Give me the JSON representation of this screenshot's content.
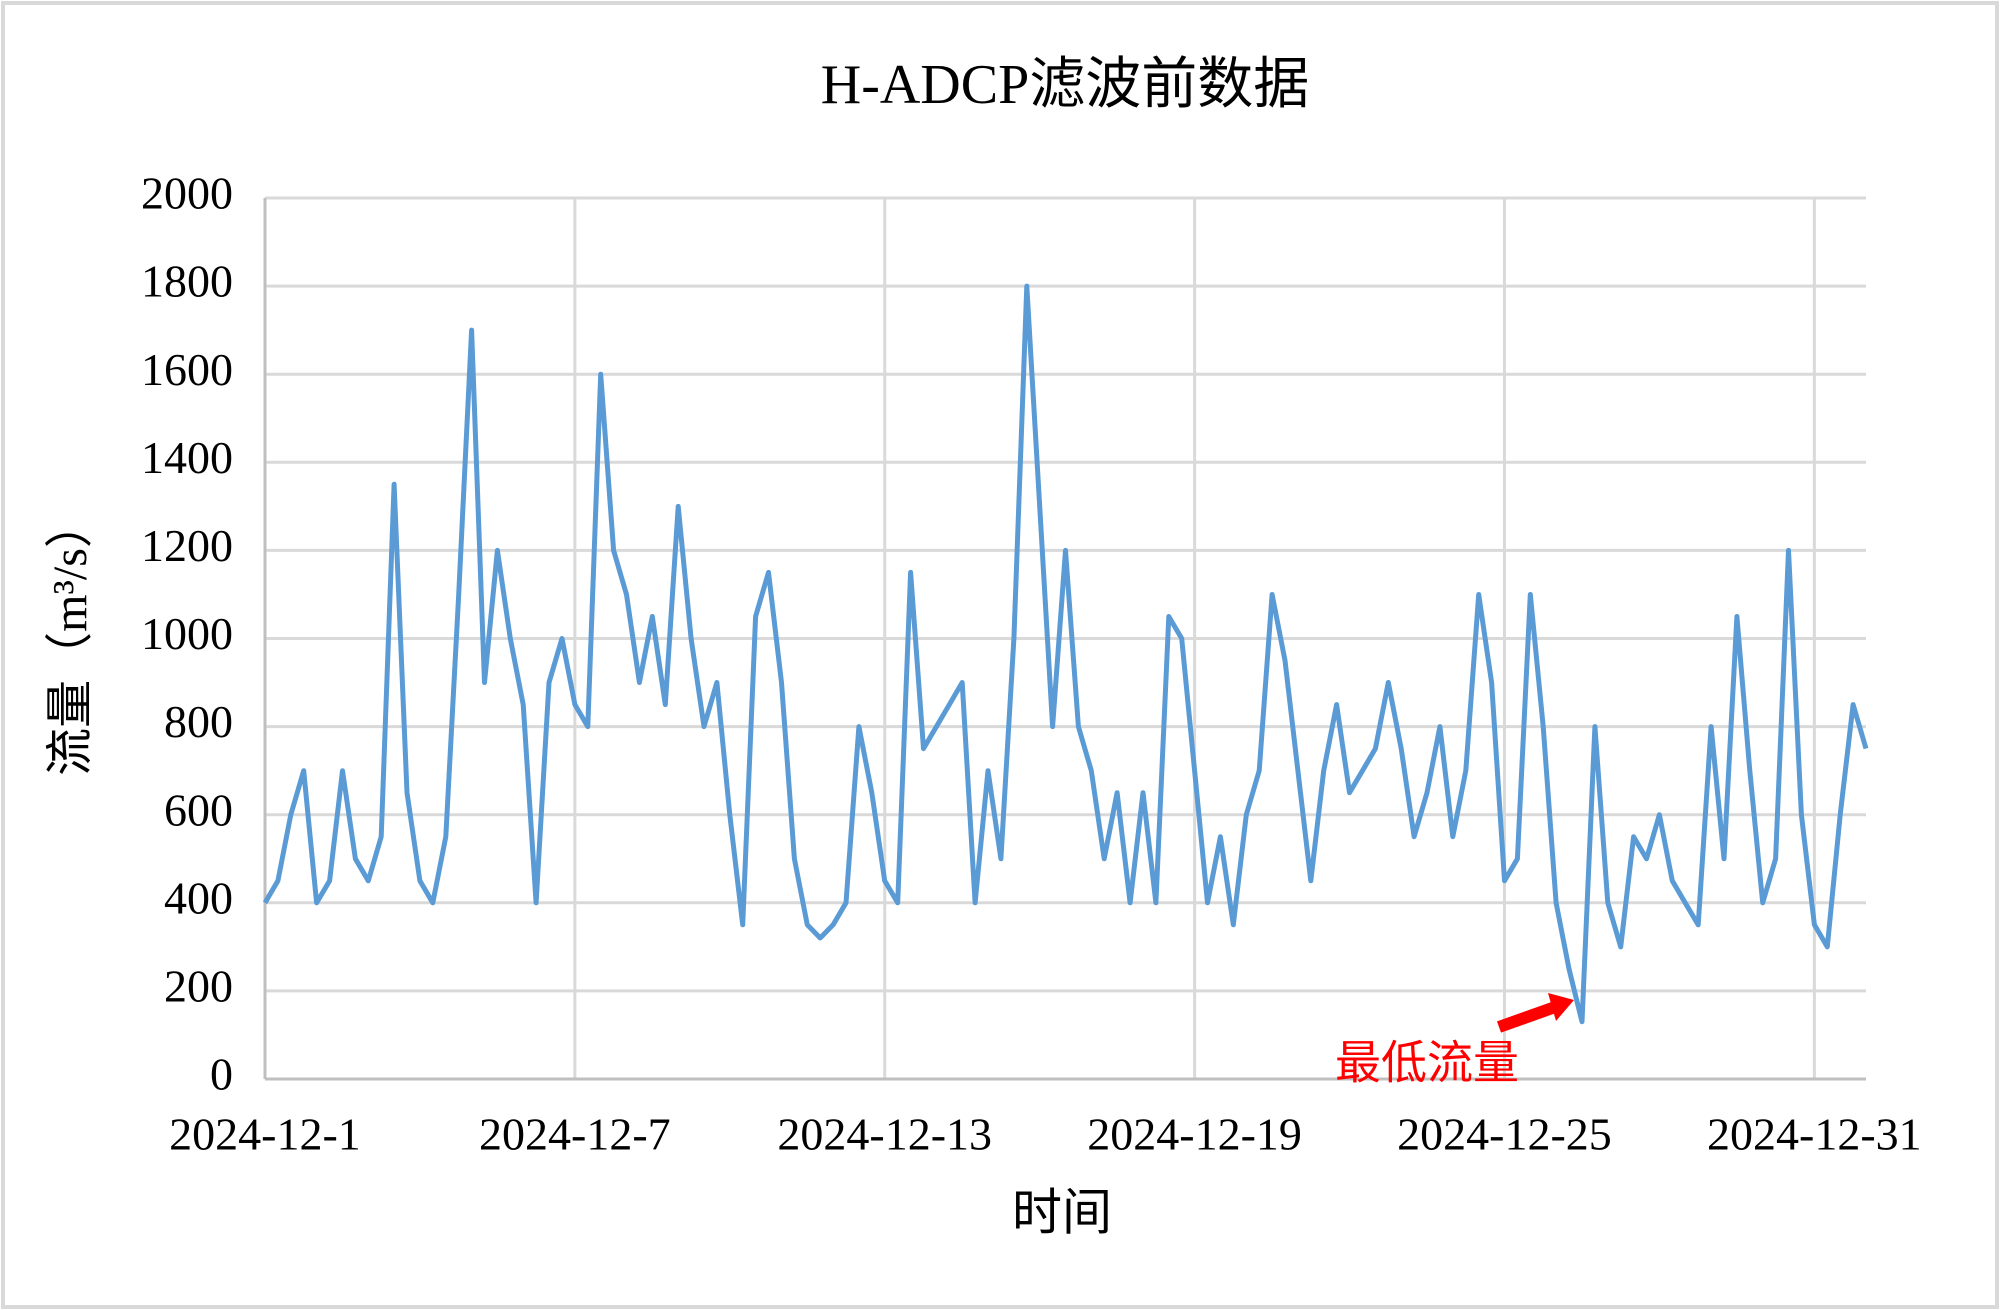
{
  "chart_data": {
    "type": "line",
    "title": "H-ADCP滤波前数据",
    "x_label": "时间",
    "y_label": "流量（m³/s）",
    "annotation": "最低流量",
    "color": "#5b9bd5",
    "grid": true,
    "xlim": [
      0,
      31
    ],
    "ylim": [
      0,
      2000
    ],
    "xticks": [
      {
        "value": 0,
        "label": "2024-12-1"
      },
      {
        "value": 6,
        "label": "2024-12-7"
      },
      {
        "value": 12,
        "label": "2024-12-13"
      },
      {
        "value": 18,
        "label": "2024-12-19"
      },
      {
        "value": 24,
        "label": "2024-12-25"
      },
      {
        "value": 30,
        "label": "2024-12-31"
      }
    ],
    "yticks": [
      0,
      200,
      400,
      600,
      800,
      1000,
      1200,
      1400,
      1600,
      1800,
      2000
    ],
    "x": [
      0,
      0.25,
      0.5,
      0.75,
      1,
      1.25,
      1.5,
      1.75,
      2,
      2.25,
      2.5,
      2.75,
      3,
      3.25,
      3.5,
      3.75,
      4,
      4.25,
      4.5,
      4.75,
      5,
      5.25,
      5.5,
      5.75,
      6,
      6.25,
      6.5,
      6.75,
      7,
      7.25,
      7.5,
      7.75,
      8,
      8.25,
      8.5,
      8.75,
      9,
      9.25,
      9.5,
      9.75,
      10,
      10.25,
      10.5,
      10.75,
      11,
      11.25,
      11.5,
      11.75,
      12,
      12.25,
      12.5,
      12.75,
      13,
      13.25,
      13.5,
      13.75,
      14,
      14.25,
      14.5,
      14.75,
      15,
      15.25,
      15.5,
      15.75,
      16,
      16.25,
      16.5,
      16.75,
      17,
      17.25,
      17.5,
      17.75,
      18,
      18.25,
      18.5,
      18.75,
      19,
      19.25,
      19.5,
      19.75,
      20,
      20.25,
      20.5,
      20.75,
      21,
      21.25,
      21.5,
      21.75,
      22,
      22.25,
      22.5,
      22.75,
      23,
      23.25,
      23.5,
      23.75,
      24,
      24.25,
      24.5,
      24.75,
      25,
      25.25,
      25.5,
      25.75,
      26,
      26.25,
      26.5,
      26.75,
      27,
      27.25,
      27.5,
      27.75,
      28,
      28.25,
      28.5,
      28.75,
      29,
      29.25,
      29.5,
      29.75,
      30,
      30.25,
      30.5,
      30.75,
      31
    ],
    "values": [
      400,
      450,
      600,
      700,
      400,
      450,
      700,
      500,
      450,
      550,
      1350,
      650,
      450,
      400,
      550,
      1100,
      1700,
      900,
      1200,
      1000,
      850,
      400,
      900,
      1000,
      850,
      800,
      1600,
      1200,
      1100,
      900,
      1050,
      850,
      1300,
      1000,
      800,
      900,
      600,
      350,
      1050,
      1150,
      900,
      500,
      350,
      320,
      350,
      400,
      800,
      650,
      450,
      400,
      1150,
      750,
      800,
      850,
      900,
      400,
      700,
      500,
      1000,
      1800,
      1300,
      800,
      1200,
      800,
      700,
      500,
      650,
      400,
      650,
      400,
      1050,
      1000,
      700,
      400,
      550,
      350,
      600,
      700,
      1100,
      950,
      700,
      450,
      700,
      850,
      650,
      700,
      750,
      900,
      750,
      550,
      650,
      800,
      550,
      700,
      1100,
      900,
      450,
      500,
      1100,
      800,
      400,
      250,
      130,
      800,
      400,
      300,
      550,
      500,
      600,
      450,
      400,
      350,
      800,
      500,
      1050,
      700,
      400,
      500,
      1200,
      600,
      350,
      300,
      600,
      850,
      750
    ]
  }
}
